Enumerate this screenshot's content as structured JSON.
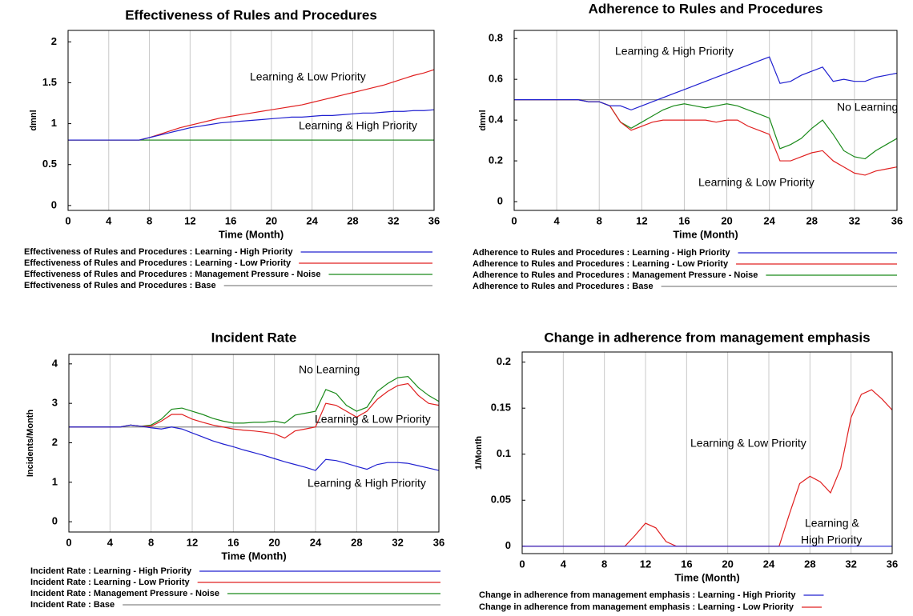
{
  "chart_data": [
    {
      "type": "line",
      "title": "Effectiveness of Rules and Procedures",
      "x_label": "Time (Month)",
      "y_label": "dmnl",
      "x": [
        0,
        1,
        2,
        3,
        4,
        5,
        6,
        7,
        8,
        9,
        10,
        11,
        12,
        13,
        14,
        15,
        16,
        17,
        18,
        19,
        20,
        21,
        22,
        23,
        24,
        25,
        26,
        27,
        28,
        29,
        30,
        31,
        32,
        33,
        34,
        35,
        36
      ],
      "xlim": [
        0,
        36
      ],
      "xticks": [
        0,
        4,
        8,
        12,
        16,
        20,
        24,
        28,
        32,
        36
      ],
      "ylim": [
        -0.06,
        2.14
      ],
      "yticks": [
        0,
        0.5,
        1,
        1.5,
        2
      ],
      "xgrid": true,
      "series": [
        {
          "name": "Effectiveness of Rules and Procedures : Learning - High Priority",
          "color": "#2020d0",
          "values": [
            0.8,
            0.8,
            0.8,
            0.8,
            0.8,
            0.8,
            0.8,
            0.8,
            0.83,
            0.86,
            0.89,
            0.92,
            0.95,
            0.97,
            0.99,
            1.01,
            1.02,
            1.03,
            1.04,
            1.05,
            1.06,
            1.07,
            1.08,
            1.08,
            1.09,
            1.1,
            1.1,
            1.11,
            1.12,
            1.13,
            1.13,
            1.14,
            1.15,
            1.15,
            1.16,
            1.16,
            1.17
          ]
        },
        {
          "name": "Effectiveness of Rules and Procedures : Learning - Low Priority",
          "color": "#e02020",
          "values": [
            0.8,
            0.8,
            0.8,
            0.8,
            0.8,
            0.8,
            0.8,
            0.8,
            0.83,
            0.87,
            0.91,
            0.95,
            0.98,
            1.01,
            1.04,
            1.07,
            1.09,
            1.11,
            1.13,
            1.15,
            1.17,
            1.19,
            1.21,
            1.23,
            1.26,
            1.29,
            1.32,
            1.35,
            1.38,
            1.41,
            1.44,
            1.47,
            1.51,
            1.55,
            1.59,
            1.62,
            1.66
          ]
        },
        {
          "name": "Effectiveness of Rules and Procedures : Management Pressure - Noise",
          "color": "#1a8a1a",
          "values": [
            0.8,
            0.8,
            0.8,
            0.8,
            0.8,
            0.8,
            0.8,
            0.8,
            0.8,
            0.8,
            0.8,
            0.8,
            0.8,
            0.8,
            0.8,
            0.8,
            0.8,
            0.8,
            0.8,
            0.8,
            0.8,
            0.8,
            0.8,
            0.8,
            0.8,
            0.8,
            0.8,
            0.8,
            0.8,
            0.8,
            0.8,
            0.8,
            0.8,
            0.8,
            0.8,
            0.8,
            0.8
          ]
        },
        {
          "name": "Effectiveness of Rules and Procedures : Base",
          "color": "#888888",
          "values": [
            0.8,
            0.8,
            0.8,
            0.8,
            0.8,
            0.8,
            0.8,
            0.8,
            0.8,
            0.8,
            0.8,
            0.8,
            0.8,
            0.8,
            0.8,
            0.8,
            0.8,
            0.8,
            0.8,
            0.8,
            0.8,
            0.8,
            0.8,
            0.8,
            0.8,
            0.8,
            0.8,
            0.8,
            0.8,
            0.8,
            0.8,
            0.8,
            0.8,
            0.8,
            0.8,
            0.8,
            0.8
          ]
        }
      ],
      "annotations": [
        "Learning &  Low Priority",
        "Learning & High Priority"
      ]
    },
    {
      "type": "line",
      "title": "Adherence to Rules and Procedures",
      "x_label": "Time (Month)",
      "y_label": "dmnl",
      "x": [
        0,
        1,
        2,
        3,
        4,
        5,
        6,
        7,
        8,
        9,
        10,
        11,
        12,
        13,
        14,
        15,
        16,
        17,
        18,
        19,
        20,
        21,
        22,
        23,
        24,
        25,
        26,
        27,
        28,
        29,
        30,
        31,
        32,
        33,
        34,
        35,
        36
      ],
      "xlim": [
        0,
        36
      ],
      "xticks": [
        0,
        4,
        8,
        12,
        16,
        20,
        24,
        28,
        32,
        36
      ],
      "ylim": [
        -0.043,
        0.84
      ],
      "yticks": [
        0,
        0.2,
        0.4,
        0.6,
        0.8
      ],
      "xgrid": true,
      "series": [
        {
          "name": "Adherence to Rules and Procedures : Learning - High Priority",
          "color": "#2020d0",
          "values": [
            0.5,
            0.5,
            0.5,
            0.5,
            0.5,
            0.5,
            0.5,
            0.49,
            0.49,
            0.47,
            0.47,
            0.45,
            0.47,
            0.49,
            0.51,
            0.53,
            0.55,
            0.57,
            0.59,
            0.61,
            0.63,
            0.65,
            0.67,
            0.69,
            0.71,
            0.58,
            0.59,
            0.62,
            0.64,
            0.66,
            0.59,
            0.6,
            0.59,
            0.59,
            0.61,
            0.62,
            0.63
          ]
        },
        {
          "name": "Adherence to Rules and Procedures : Learning - Low Priority",
          "color": "#e02020",
          "values": [
            0.5,
            0.5,
            0.5,
            0.5,
            0.5,
            0.5,
            0.5,
            0.49,
            0.49,
            0.47,
            0.39,
            0.35,
            0.37,
            0.39,
            0.4,
            0.4,
            0.4,
            0.4,
            0.4,
            0.39,
            0.4,
            0.4,
            0.37,
            0.35,
            0.33,
            0.2,
            0.2,
            0.22,
            0.24,
            0.25,
            0.2,
            0.17,
            0.14,
            0.13,
            0.15,
            0.16,
            0.17
          ]
        },
        {
          "name": "Adherence to Rules and Procedures : Management Pressure - Noise",
          "color": "#1a8a1a",
          "values": [
            0.5,
            0.5,
            0.5,
            0.5,
            0.5,
            0.5,
            0.5,
            0.49,
            0.49,
            0.47,
            0.39,
            0.36,
            0.39,
            0.42,
            0.45,
            0.47,
            0.48,
            0.47,
            0.46,
            0.47,
            0.48,
            0.47,
            0.45,
            0.43,
            0.41,
            0.26,
            0.28,
            0.31,
            0.36,
            0.4,
            0.33,
            0.25,
            0.22,
            0.21,
            0.25,
            0.28,
            0.31
          ]
        },
        {
          "name": "Adherence to Rules and Procedures : Base",
          "color": "#888888",
          "values": [
            0.5,
            0.5,
            0.5,
            0.5,
            0.5,
            0.5,
            0.5,
            0.5,
            0.5,
            0.5,
            0.5,
            0.5,
            0.5,
            0.5,
            0.5,
            0.5,
            0.5,
            0.5,
            0.5,
            0.5,
            0.5,
            0.5,
            0.5,
            0.5,
            0.5,
            0.5,
            0.5,
            0.5,
            0.5,
            0.5,
            0.5,
            0.5,
            0.5,
            0.5,
            0.5,
            0.5,
            0.5
          ]
        }
      ],
      "annotations": [
        "Learning &  High Priority",
        "No Learning",
        "Learning &  Low Priority"
      ]
    },
    {
      "type": "line",
      "title": "Incident Rate",
      "x_label": "Time (Month)",
      "y_label": "Incidents/Month",
      "x": [
        0,
        1,
        2,
        3,
        4,
        5,
        6,
        7,
        8,
        9,
        10,
        11,
        12,
        13,
        14,
        15,
        16,
        17,
        18,
        19,
        20,
        21,
        22,
        23,
        24,
        25,
        26,
        27,
        28,
        29,
        30,
        31,
        32,
        33,
        34,
        35,
        36
      ],
      "xlim": [
        0,
        36
      ],
      "xticks": [
        0,
        4,
        8,
        12,
        16,
        20,
        24,
        28,
        32,
        36
      ],
      "ylim": [
        -0.26,
        4.24
      ],
      "yticks": [
        0,
        1,
        2,
        3,
        4
      ],
      "xgrid": true,
      "series": [
        {
          "name": "Incident Rate : Learning - High Priority",
          "color": "#2020d0",
          "values": [
            2.4,
            2.4,
            2.4,
            2.4,
            2.4,
            2.4,
            2.45,
            2.42,
            2.38,
            2.35,
            2.4,
            2.35,
            2.25,
            2.15,
            2.05,
            1.97,
            1.9,
            1.82,
            1.75,
            1.68,
            1.6,
            1.52,
            1.45,
            1.38,
            1.3,
            1.58,
            1.55,
            1.48,
            1.4,
            1.33,
            1.45,
            1.5,
            1.5,
            1.48,
            1.42,
            1.36,
            1.3
          ]
        },
        {
          "name": "Incident Rate : Learning - Low Priority",
          "color": "#e02020",
          "values": [
            2.4,
            2.4,
            2.4,
            2.4,
            2.4,
            2.4,
            2.45,
            2.42,
            2.42,
            2.55,
            2.72,
            2.72,
            2.6,
            2.52,
            2.45,
            2.4,
            2.35,
            2.32,
            2.3,
            2.27,
            2.23,
            2.12,
            2.3,
            2.35,
            2.4,
            3.0,
            2.95,
            2.8,
            2.65,
            2.8,
            3.1,
            3.3,
            3.45,
            3.5,
            3.2,
            3.0,
            2.95
          ]
        },
        {
          "name": "Incident Rate : Management Pressure - Noise",
          "color": "#1a8a1a",
          "values": [
            2.4,
            2.4,
            2.4,
            2.4,
            2.4,
            2.4,
            2.45,
            2.42,
            2.45,
            2.6,
            2.85,
            2.88,
            2.8,
            2.72,
            2.62,
            2.55,
            2.5,
            2.5,
            2.52,
            2.52,
            2.55,
            2.5,
            2.7,
            2.75,
            2.8,
            3.35,
            3.25,
            2.95,
            2.8,
            2.9,
            3.3,
            3.5,
            3.65,
            3.68,
            3.4,
            3.2,
            3.05
          ]
        },
        {
          "name": "Incident Rate : Base",
          "color": "#888888",
          "values": [
            2.4,
            2.4,
            2.4,
            2.4,
            2.4,
            2.4,
            2.4,
            2.4,
            2.4,
            2.4,
            2.4,
            2.4,
            2.4,
            2.4,
            2.4,
            2.4,
            2.4,
            2.4,
            2.4,
            2.4,
            2.4,
            2.4,
            2.4,
            2.4,
            2.4,
            2.4,
            2.4,
            2.4,
            2.4,
            2.4,
            2.4,
            2.4,
            2.4,
            2.4,
            2.4,
            2.4,
            2.4
          ]
        }
      ],
      "annotations": [
        "No Learning",
        "Learning &  Low Priority",
        "Learning & High Priority"
      ]
    },
    {
      "type": "line",
      "title": "Change in adherence from management emphasis",
      "x_label": "Time (Month)",
      "y_label": "1/Month",
      "x": [
        0,
        1,
        2,
        3,
        4,
        5,
        6,
        7,
        8,
        9,
        10,
        11,
        12,
        13,
        14,
        15,
        16,
        17,
        18,
        19,
        20,
        21,
        22,
        23,
        24,
        25,
        26,
        27,
        28,
        29,
        30,
        31,
        32,
        33,
        34,
        35,
        36
      ],
      "xlim": [
        0,
        36
      ],
      "xticks": [
        0,
        4,
        8,
        12,
        16,
        20,
        24,
        28,
        32,
        36
      ],
      "ylim": [
        -0.008,
        0.211
      ],
      "yticks": [
        0,
        0.05,
        0.1,
        0.15,
        0.2
      ],
      "xgrid": true,
      "series": [
        {
          "name": "Change in adherence from management emphasis : Learning - High Priority",
          "color": "#2020d0",
          "values": [
            0,
            0,
            0,
            0,
            0,
            0,
            0,
            0,
            0,
            0,
            0,
            0,
            0,
            0,
            0,
            0,
            0,
            0,
            0,
            0,
            0,
            0,
            0,
            0,
            0,
            0,
            0,
            0,
            0,
            0,
            0,
            0,
            0,
            0,
            0,
            0,
            0
          ]
        },
        {
          "name": "Change in adherence from management emphasis : Learning - Low Priority",
          "color": "#e02020",
          "values": [
            0,
            0,
            0,
            0,
            0,
            0,
            0,
            0,
            0,
            0,
            0,
            0.012,
            0.025,
            0.02,
            0.005,
            0,
            0,
            0,
            0,
            0,
            0,
            0,
            0,
            0,
            0,
            0,
            0.035,
            0.068,
            0.076,
            0.07,
            0.058,
            0.085,
            0.14,
            0.165,
            0.17,
            0.16,
            0.148
          ]
        }
      ],
      "annotations": [
        "Learning &  Low Priority",
        "Learning &",
        "High Priority"
      ]
    }
  ]
}
